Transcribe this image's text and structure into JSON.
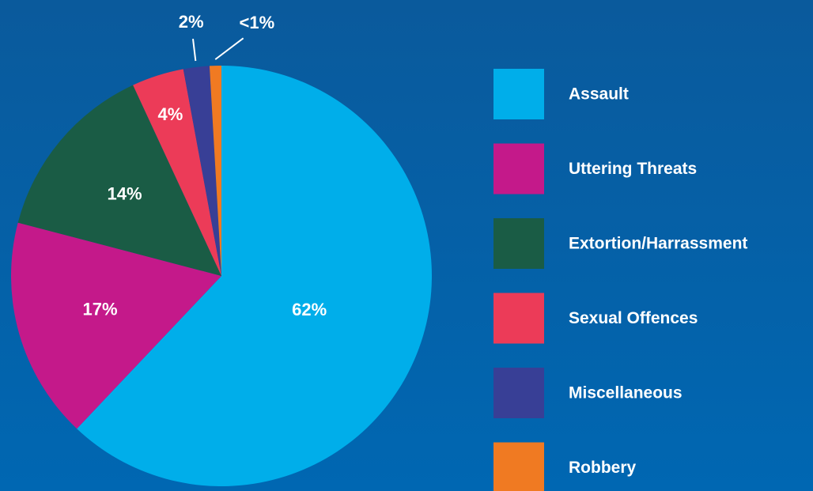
{
  "chart_data": {
    "type": "pie",
    "categories": [
      "Assault",
      "Uttering Threats",
      "Extortion/Harrassment",
      "Sexual Offences",
      "Miscellaneous",
      "Robbery"
    ],
    "values": [
      62,
      17,
      14,
      4,
      2,
      0.9
    ],
    "value_labels": [
      "62%",
      "17%",
      "14%",
      "4%",
      "2%",
      "<1%"
    ],
    "colors": [
      "#00aeea",
      "#c4198a",
      "#1a5c45",
      "#ec3b58",
      "#383f96",
      "#f07a22"
    ],
    "legend": "right"
  }
}
